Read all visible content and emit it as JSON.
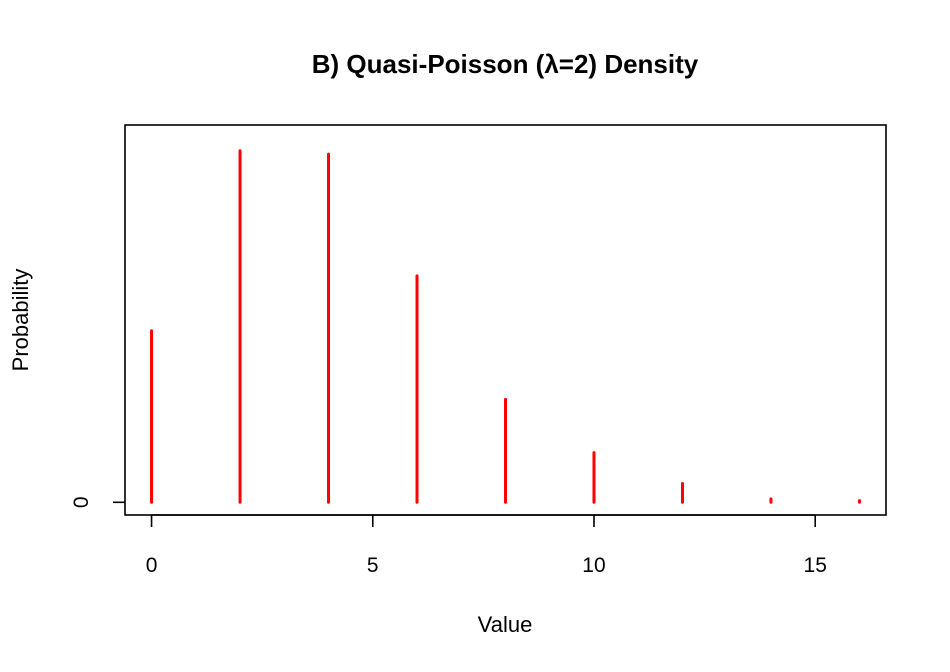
{
  "chart_data": {
    "type": "bar",
    "title": "B) Quasi-Poisson (λ=2) Density",
    "xlabel": "Value",
    "ylabel": "Probability",
    "xlim": [
      -0.6,
      16.6
    ],
    "ylim": [
      -0.0074,
      0.22
    ],
    "x_ticks": [
      0,
      5,
      10,
      15
    ],
    "x_tick_labels": [
      "0",
      "5",
      "10",
      "15"
    ],
    "y_ticks": [
      0
    ],
    "y_tick_labels": [
      "0"
    ],
    "grid": false,
    "legend": "none",
    "series": [
      {
        "color": "#ff0000",
        "x": [
          0,
          2,
          4,
          6,
          8,
          10,
          12,
          14,
          16
        ],
        "values": [
          0.1,
          0.205,
          0.203,
          0.132,
          0.06,
          0.029,
          0.011,
          0.002,
          0.001
        ]
      }
    ]
  }
}
